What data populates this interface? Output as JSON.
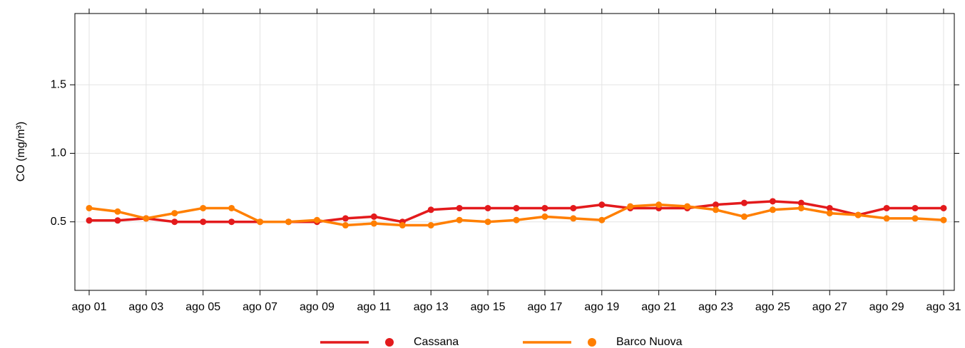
{
  "chart_data": {
    "type": "line",
    "y_label": "CO (mg/m³)",
    "categories": [
      "ago 01",
      null,
      "ago 03",
      null,
      "ago 05",
      null,
      "ago 07",
      null,
      "ago 09",
      null,
      "ago 11",
      null,
      "ago 13",
      null,
      "ago 15",
      null,
      "ago 17",
      null,
      "ago 19",
      null,
      "ago 21",
      null,
      "ago 23",
      null,
      "ago 25",
      null,
      "ago 27",
      null,
      "ago 29",
      null,
      "ago 31"
    ],
    "series": [
      {
        "name": "Cassana",
        "color": "#e31a1c",
        "values": [
          0.51,
          0.51,
          0.525,
          0.5,
          0.5,
          0.5,
          0.5,
          0.5,
          0.5,
          0.525,
          0.538,
          0.5,
          0.588,
          0.6,
          0.6,
          0.6,
          0.6,
          0.6,
          0.625,
          0.6,
          0.6,
          0.6,
          0.625,
          0.638,
          0.65,
          0.638,
          0.6,
          0.55,
          0.6,
          0.6,
          0.6
        ]
      },
      {
        "name": "Barco Nuova",
        "color": "#ff7f00",
        "values": [
          0.6,
          0.575,
          0.525,
          0.563,
          0.6,
          0.6,
          0.5,
          0.5,
          0.513,
          0.475,
          0.488,
          0.475,
          0.475,
          0.513,
          0.5,
          0.513,
          0.538,
          0.525,
          0.513,
          0.613,
          0.625,
          0.613,
          0.588,
          0.538,
          0.588,
          0.6,
          0.563,
          0.55,
          0.525,
          0.525,
          0.513
        ]
      }
    ],
    "ylim": [
      0.0,
      2.02
    ],
    "yticks": [
      0.5,
      {
        "value": 1.0,
        "label": "1.0"
      },
      1.5
    ],
    "grid": true,
    "legend": "bottom"
  }
}
